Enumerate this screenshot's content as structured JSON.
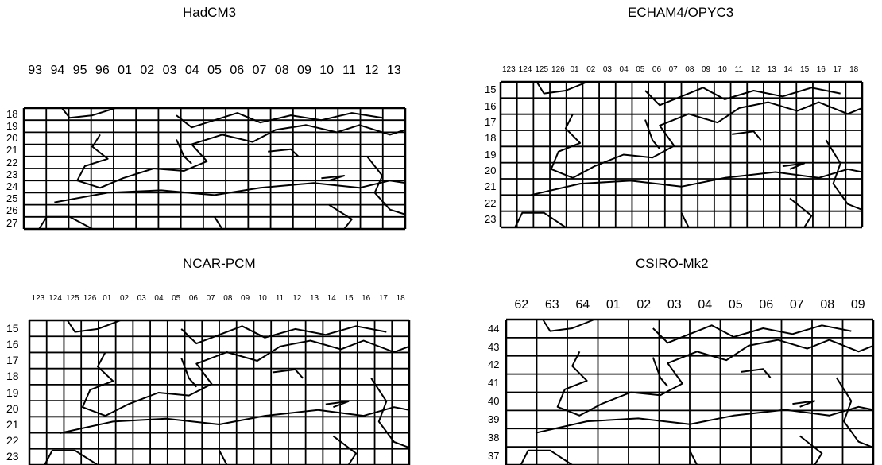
{
  "panels": [
    {
      "title": "HadCM3",
      "col_labels": [
        "93",
        "94",
        "95",
        "96",
        "01",
        "02",
        "03",
        "04",
        "05",
        "06",
        "07",
        "08",
        "09",
        "10",
        "11",
        "12",
        "13"
      ],
      "row_labels": [
        "18",
        "19",
        "20",
        "21",
        "22",
        "23",
        "24",
        "25",
        "26",
        "27"
      ]
    },
    {
      "title": "ECHAM4/OPYC3",
      "col_labels": [
        "123",
        "124",
        "125",
        "126",
        "01",
        "02",
        "03",
        "04",
        "05",
        "06",
        "07",
        "08",
        "09",
        "10",
        "11",
        "12",
        "13",
        "14",
        "15",
        "16",
        "17",
        "18"
      ],
      "row_labels": [
        "15",
        "16",
        "17",
        "18",
        "19",
        "20",
        "21",
        "22",
        "23"
      ]
    },
    {
      "title": "NCAR-PCM",
      "col_labels": [
        "123",
        "124",
        "125",
        "126",
        "01",
        "02",
        "03",
        "04",
        "05",
        "06",
        "07",
        "08",
        "09",
        "10",
        "11",
        "12",
        "13",
        "14",
        "15",
        "16",
        "17",
        "18"
      ],
      "row_labels": [
        "15",
        "16",
        "17",
        "18",
        "19",
        "20",
        "21",
        "22",
        "23"
      ]
    },
    {
      "title": "CSIRO-Mk2",
      "col_labels": [
        "62",
        "63",
        "64",
        "01",
        "02",
        "03",
        "04",
        "05",
        "06",
        "07",
        "08",
        "09"
      ],
      "row_labels": [
        "44",
        "43",
        "42",
        "41",
        "40",
        "39",
        "38",
        "37"
      ]
    }
  ]
}
